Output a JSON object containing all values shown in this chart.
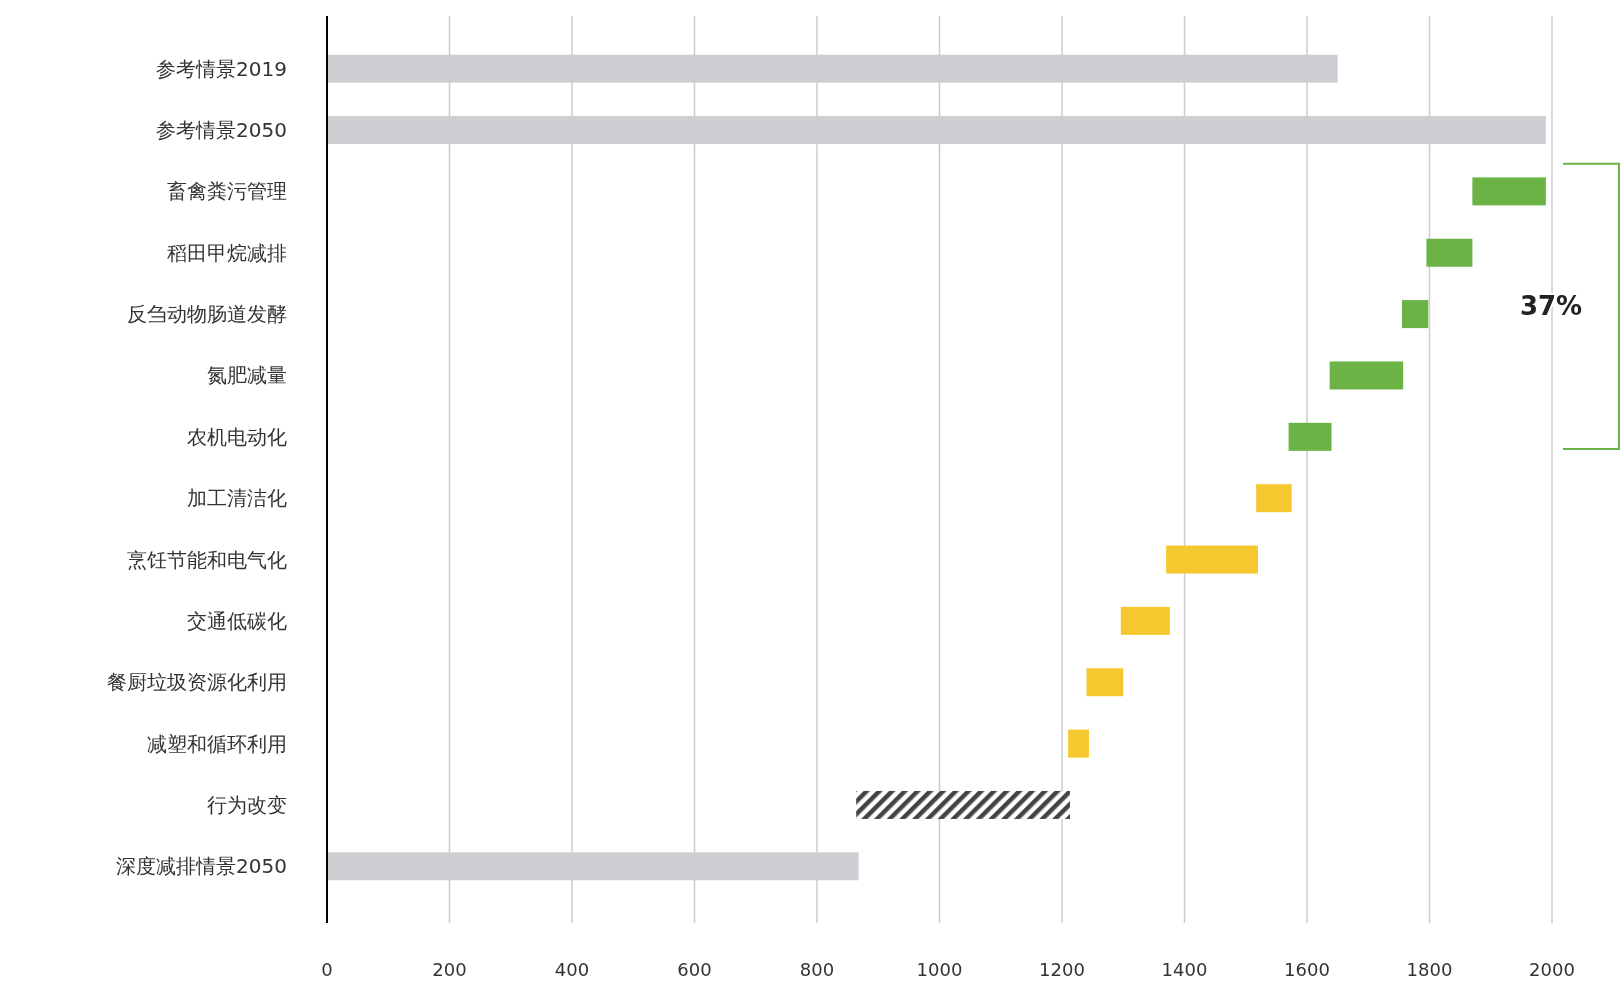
{
  "chart_data": {
    "type": "bar",
    "orientation": "horizontal",
    "categories": [
      "参考情景2019",
      "参考情景2050",
      "畜禽粪污管理",
      "稻田甲烷减排",
      "反刍动物肠道发酵",
      "氮肥减量",
      "农机电动化",
      "加工清洁化",
      "烹饪节能和电气化",
      "交通低碳化",
      "餐厨垃圾资源化利用",
      "减塑和循环利用",
      "行为改变",
      "深度减排情景2050"
    ],
    "values": [
      1650,
      1990,
      120,
      75,
      43,
      120,
      70,
      58,
      150,
      80,
      60,
      34,
      349,
      868
    ],
    "base": [
      0,
      0,
      1870,
      1795,
      1755,
      1637,
      1570,
      1517,
      1370,
      1296,
      1240,
      1210,
      864,
      0
    ],
    "colors": [
      "#cfcfd3",
      "#cfcfd3",
      "#6ab344",
      "#6ab344",
      "#6ab344",
      "#6ab344",
      "#6ab344",
      "#f6c830",
      "#f6c830",
      "#f6c830",
      "#f6c830",
      "#f6c830",
      "#444444",
      "#cfcfd3"
    ],
    "xlim": [
      0,
      2000
    ],
    "xticks": [
      0,
      200,
      400,
      600,
      800,
      1000,
      1200,
      1400,
      1600,
      1800,
      2000
    ],
    "grid": "x",
    "annotations": [
      "37%"
    ]
  }
}
